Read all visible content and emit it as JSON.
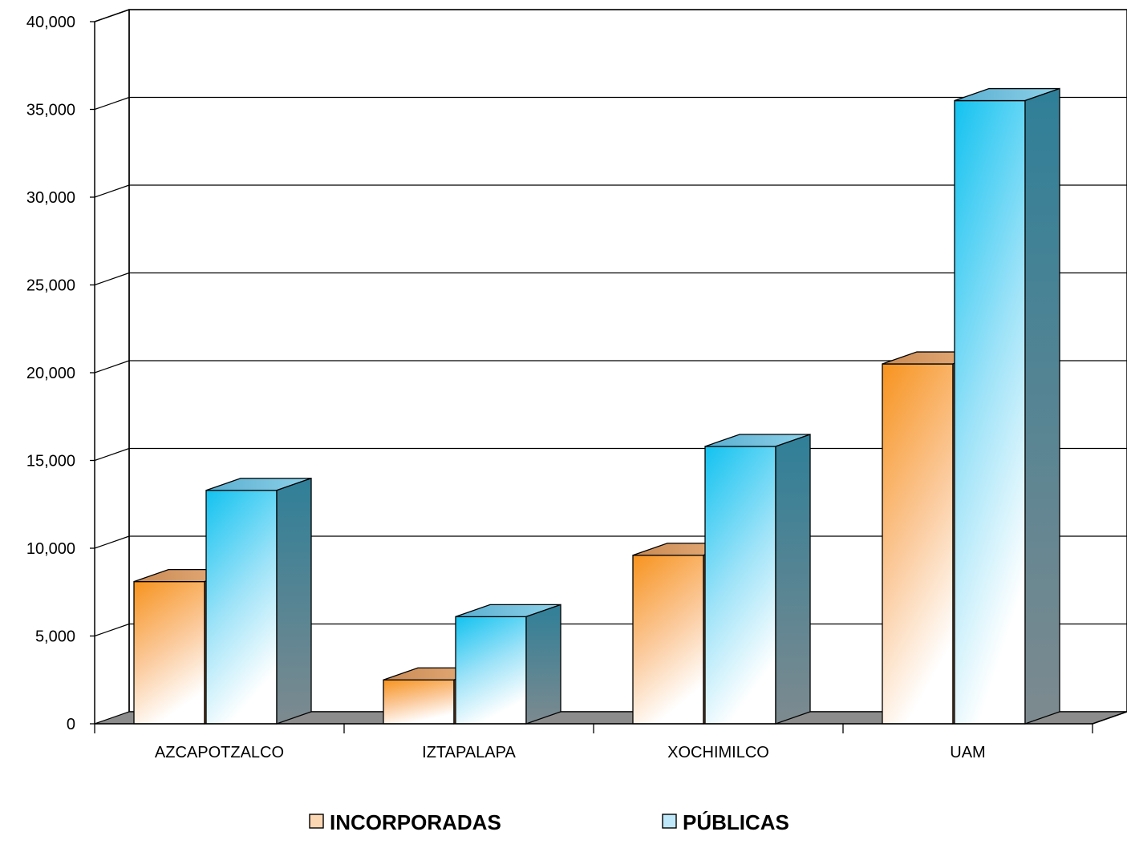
{
  "chart_data": {
    "type": "bar",
    "title": "",
    "xlabel": "",
    "ylabel": "",
    "categories": [
      "AZCAPOTZALCO",
      "IZTAPALAPA",
      "XOCHIMILCO",
      "UAM"
    ],
    "series": [
      {
        "name": "INCORPORADAS",
        "values": [
          8100,
          2500,
          9600,
          20500
        ],
        "color": "#f7941d"
      },
      {
        "name": "PÚBLICAS",
        "values": [
          13300,
          6100,
          15800,
          35500
        ],
        "color": "#1ec8f2"
      }
    ],
    "ylim": [
      0,
      40000
    ],
    "yticks": [
      "0",
      "5,000",
      "10,000",
      "15,000",
      "20,000",
      "25,000",
      "30,000",
      "35,000",
      "40,000"
    ],
    "grid": true,
    "legend_position": "bottom",
    "three_d": true
  }
}
